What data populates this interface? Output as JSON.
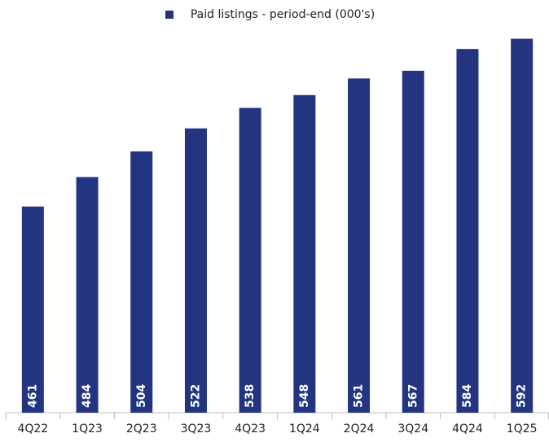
{
  "chart_data": {
    "type": "bar",
    "legend": "Paid listings - period-end (000's)",
    "categories": [
      "4Q22",
      "1Q23",
      "2Q23",
      "3Q23",
      "4Q23",
      "1Q24",
      "2Q24",
      "3Q24",
      "4Q24",
      "1Q25"
    ],
    "values": [
      461,
      484,
      504,
      522,
      538,
      548,
      561,
      567,
      584,
      592
    ],
    "color": "#233580",
    "ylim": [
      300,
      600
    ]
  }
}
